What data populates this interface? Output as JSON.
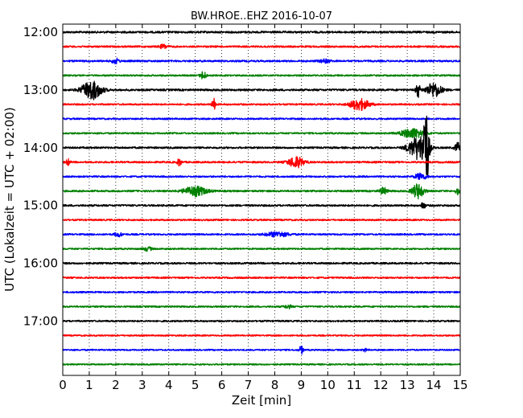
{
  "chart_data": {
    "type": "line",
    "title": "BW.HROE..EHZ 2016-10-07",
    "xlabel": "Zeit  [min]",
    "ylabel": "UTC (Lokalzeit = UTC + 02:00)",
    "xlim": [
      0,
      15
    ],
    "x_ticks": [
      0,
      1,
      2,
      3,
      4,
      5,
      6,
      7,
      8,
      9,
      10,
      11,
      12,
      13,
      14,
      15
    ],
    "y_ticks": [
      "12:00",
      "13:00",
      "14:00",
      "15:00",
      "16:00",
      "17:00"
    ],
    "grid": "vertical dotted",
    "trace_interval_min": 15,
    "trace_colors": [
      "#000000",
      "#ff0000",
      "#0000ff",
      "#008000"
    ],
    "traces": [
      {
        "start": "12:00",
        "color": "#000000",
        "noise": 1.2,
        "events": []
      },
      {
        "start": "12:15",
        "color": "#ff0000",
        "noise": 1.1,
        "events": [
          {
            "t": 3.8,
            "amp": 2.5,
            "dur": 0.2
          }
        ]
      },
      {
        "start": "12:30",
        "color": "#0000ff",
        "noise": 1.1,
        "events": [
          {
            "t": 2.0,
            "amp": 3.0,
            "dur": 0.2
          },
          {
            "t": 9.9,
            "amp": 2.0,
            "dur": 0.3
          }
        ]
      },
      {
        "start": "12:45",
        "color": "#008000",
        "noise": 1.0,
        "events": [
          {
            "t": 5.3,
            "amp": 5.0,
            "dur": 0.15
          }
        ]
      },
      {
        "start": "13:00",
        "color": "#000000",
        "noise": 1.2,
        "events": [
          {
            "t": 1.1,
            "amp": 12,
            "dur": 0.5
          },
          {
            "t": 13.4,
            "amp": 10,
            "dur": 0.1
          },
          {
            "t": 14.0,
            "amp": 9,
            "dur": 0.4
          }
        ]
      },
      {
        "start": "13:15",
        "color": "#ff0000",
        "noise": 1.0,
        "events": [
          {
            "t": 5.7,
            "amp": 7,
            "dur": 0.1
          },
          {
            "t": 11.2,
            "amp": 7,
            "dur": 0.5
          }
        ]
      },
      {
        "start": "13:30",
        "color": "#0000ff",
        "noise": 1.0,
        "events": []
      },
      {
        "start": "13:45",
        "color": "#008000",
        "noise": 1.0,
        "events": [
          {
            "t": 13.2,
            "amp": 6,
            "dur": 0.6
          }
        ]
      },
      {
        "start": "14:00",
        "color": "#000000",
        "noise": 1.1,
        "events": [
          {
            "t": 13.4,
            "amp": 14,
            "dur": 0.5
          },
          {
            "t": 13.7,
            "amp": 50,
            "dur": 0.15
          },
          {
            "t": 14.9,
            "amp": 6,
            "dur": 0.15
          }
        ]
      },
      {
        "start": "14:15",
        "color": "#ff0000",
        "noise": 1.1,
        "events": [
          {
            "t": 0.2,
            "amp": 4,
            "dur": 0.1
          },
          {
            "t": 4.4,
            "amp": 5,
            "dur": 0.1
          },
          {
            "t": 8.8,
            "amp": 7,
            "dur": 0.4
          }
        ]
      },
      {
        "start": "14:30",
        "color": "#0000ff",
        "noise": 1.0,
        "events": [
          {
            "t": 13.5,
            "amp": 4,
            "dur": 0.3
          }
        ]
      },
      {
        "start": "14:45",
        "color": "#008000",
        "noise": 1.1,
        "events": [
          {
            "t": 5.0,
            "amp": 6,
            "dur": 0.6
          },
          {
            "t": 12.1,
            "amp": 4,
            "dur": 0.2
          },
          {
            "t": 13.4,
            "amp": 9,
            "dur": 0.3
          },
          {
            "t": 14.9,
            "amp": 4,
            "dur": 0.1
          }
        ]
      },
      {
        "start": "15:00",
        "color": "#000000",
        "noise": 1.1,
        "events": [
          {
            "t": 13.6,
            "amp": 5,
            "dur": 0.1
          }
        ]
      },
      {
        "start": "15:15",
        "color": "#ff0000",
        "noise": 1.0,
        "events": []
      },
      {
        "start": "15:30",
        "color": "#0000ff",
        "noise": 1.0,
        "events": [
          {
            "t": 2.1,
            "amp": 2.5,
            "dur": 0.2
          },
          {
            "t": 8.1,
            "amp": 3,
            "dur": 0.6
          }
        ]
      },
      {
        "start": "15:45",
        "color": "#008000",
        "noise": 1.0,
        "events": [
          {
            "t": 3.2,
            "amp": 2.5,
            "dur": 0.2
          }
        ]
      },
      {
        "start": "16:00",
        "color": "#000000",
        "noise": 1.1,
        "events": []
      },
      {
        "start": "16:15",
        "color": "#ff0000",
        "noise": 1.0,
        "events": []
      },
      {
        "start": "16:30",
        "color": "#0000ff",
        "noise": 1.0,
        "events": []
      },
      {
        "start": "16:45",
        "color": "#008000",
        "noise": 1.0,
        "events": [
          {
            "t": 8.5,
            "amp": 2,
            "dur": 0.2
          }
        ]
      },
      {
        "start": "17:00",
        "color": "#000000",
        "noise": 1.0,
        "events": []
      },
      {
        "start": "17:15",
        "color": "#ff0000",
        "noise": 0.9,
        "events": []
      },
      {
        "start": "17:30",
        "color": "#0000ff",
        "noise": 0.9,
        "events": [
          {
            "t": 9.0,
            "amp": 5,
            "dur": 0.1
          },
          {
            "t": 11.4,
            "amp": 2,
            "dur": 0.1
          }
        ]
      },
      {
        "start": "17:45",
        "color": "#008000",
        "noise": 0.9,
        "events": []
      }
    ]
  }
}
